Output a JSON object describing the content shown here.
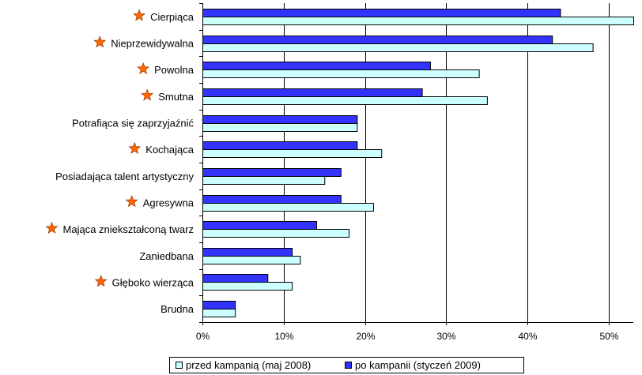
{
  "chart_data": {
    "type": "bar",
    "orientation": "horizontal",
    "categories": [
      "Cierpiąca",
      "Nieprzewidywalna",
      "Powolna",
      "Smutna",
      "Potrafiąca się zaprzyjaźnić",
      "Kochająca",
      "Posiadająca talent artystyczny",
      "Agresywna",
      "Mająca zniekształconą twarz",
      "Zaniedbana",
      "Głęboko wierząca",
      "Brudna"
    ],
    "starred": [
      true,
      true,
      true,
      true,
      false,
      true,
      false,
      true,
      true,
      false,
      true,
      false
    ],
    "series": [
      {
        "name": "przed kampanią (maj 2008)",
        "color": "#ccffff",
        "values": [
          53,
          48,
          34,
          35,
          19,
          22,
          15,
          21,
          18,
          12,
          11,
          4
        ]
      },
      {
        "name": "po kampanii (styczeń 2009)",
        "color": "#3333ff",
        "values": [
          44,
          43,
          28,
          27,
          19,
          19,
          17,
          17,
          14,
          11,
          8,
          4
        ]
      }
    ],
    "xlim": [
      0,
      53
    ],
    "xticks": [
      0,
      10,
      20,
      30,
      40,
      50
    ],
    "xtick_labels": [
      "0%",
      "10%",
      "20%",
      "30%",
      "40%",
      "50%"
    ],
    "grid": "vertical",
    "legend": "bottom",
    "star_color": "#ff6600"
  }
}
